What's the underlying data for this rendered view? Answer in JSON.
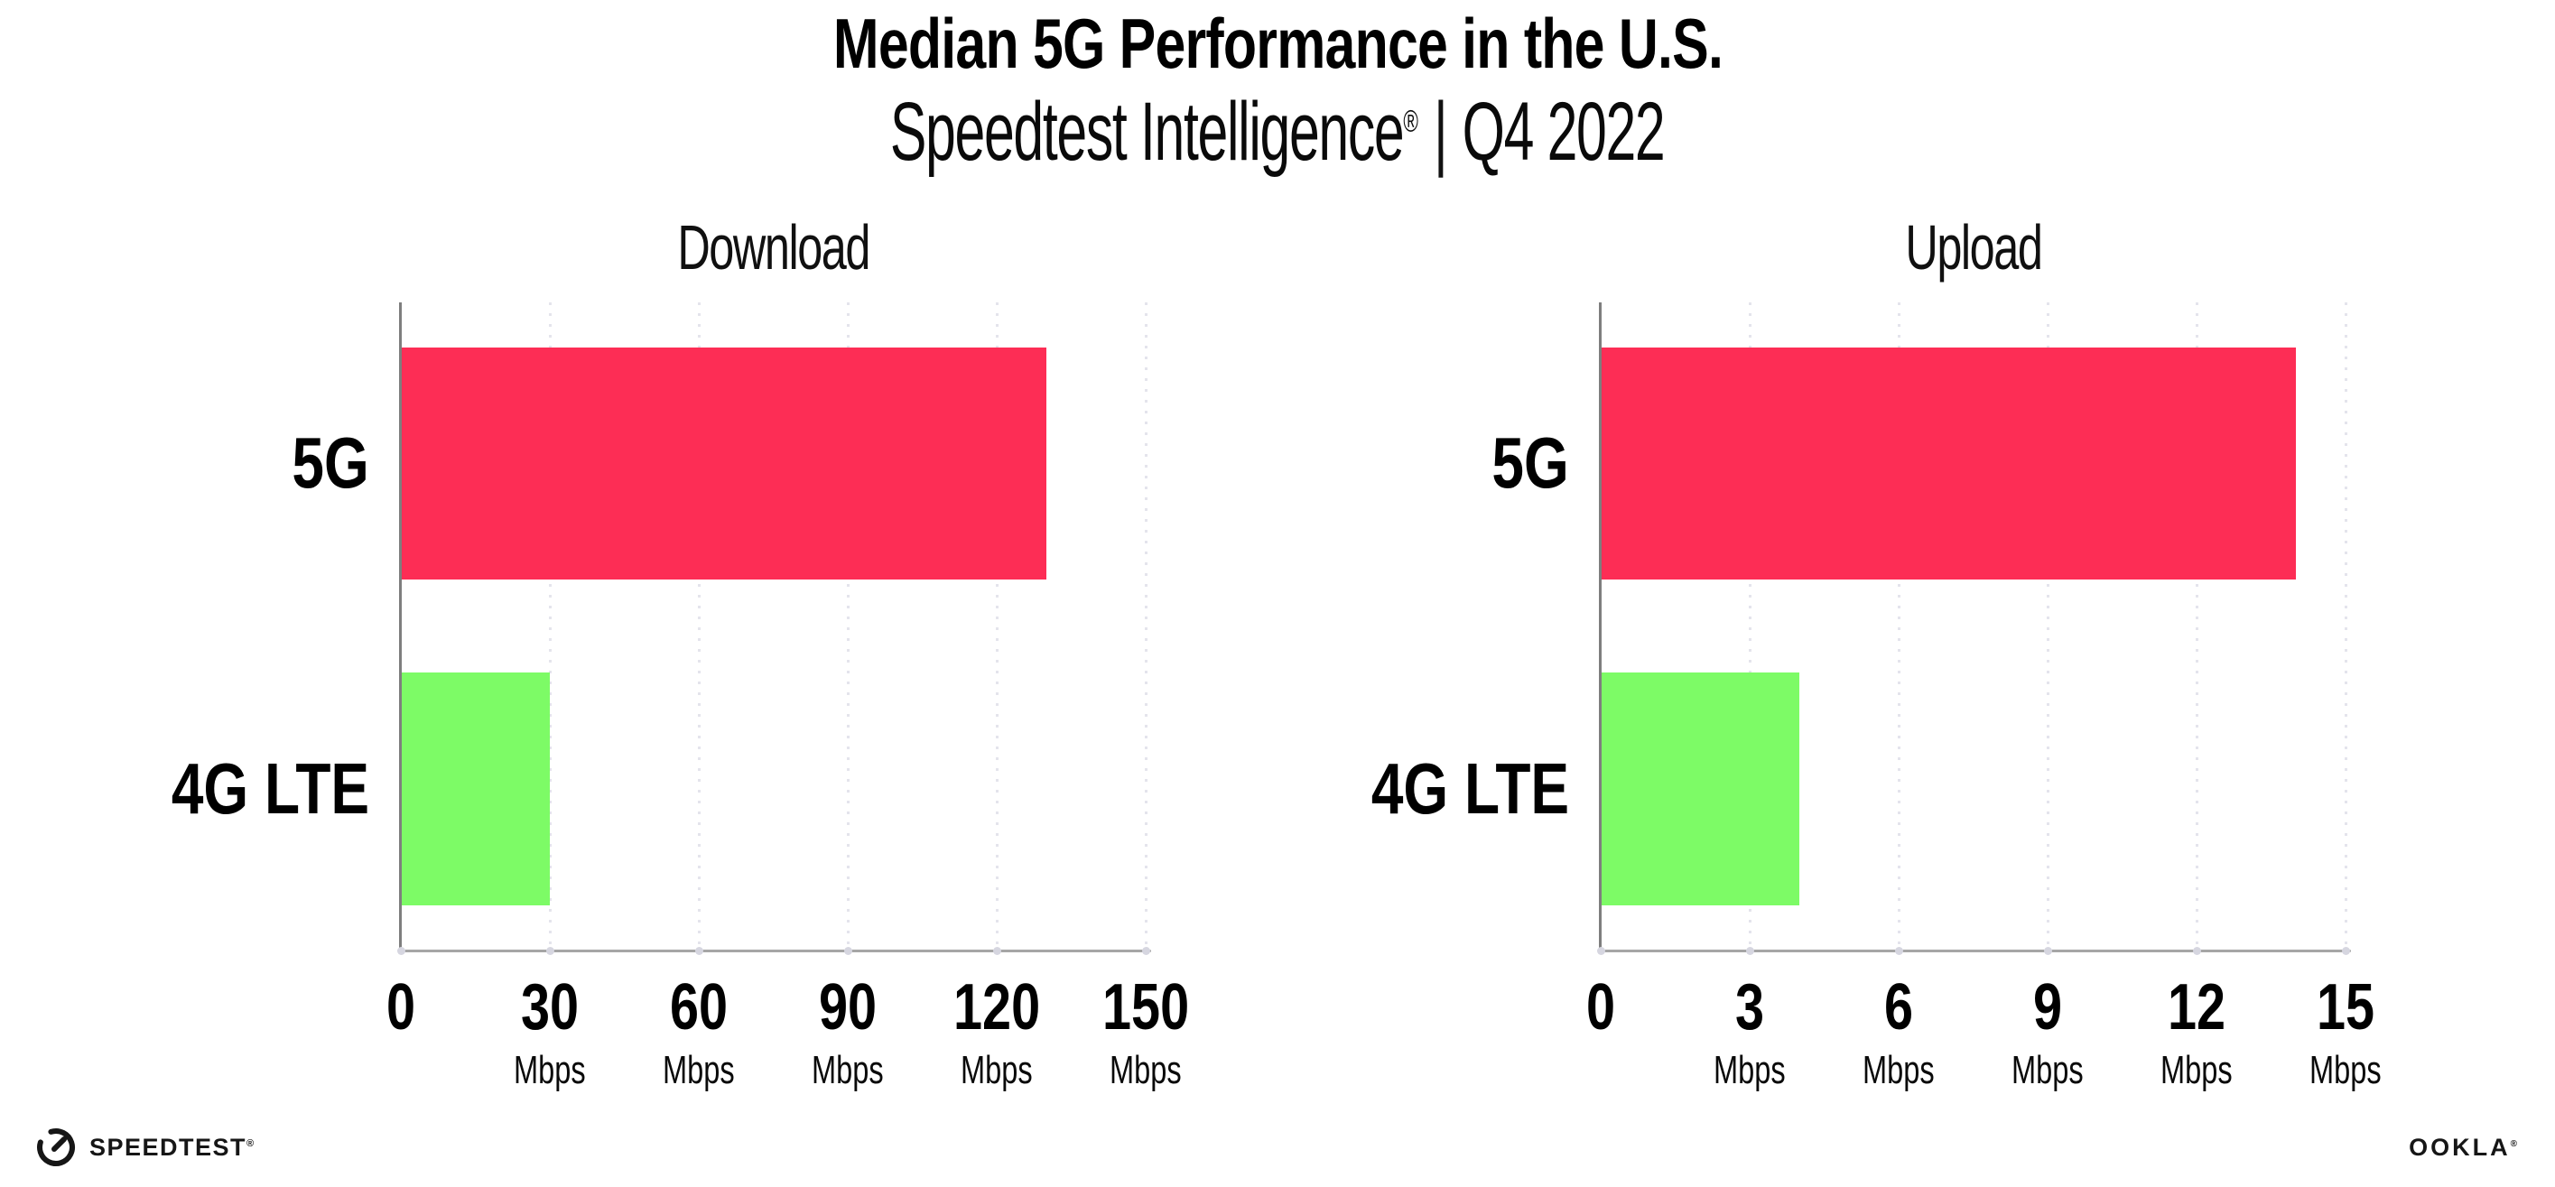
{
  "header": {
    "title": "Median 5G Performance in the U.S.",
    "subtitle": {
      "brand": "Speedtest Intelligence",
      "registered_mark": "®",
      "separator": "|",
      "period": "Q4 2022"
    }
  },
  "chart_data": [
    {
      "type": "bar",
      "orientation": "horizontal",
      "title": "Download",
      "categories": [
        "5G",
        "4G LTE"
      ],
      "values": [
        130,
        30
      ],
      "unit": "Mbps",
      "xlim": [
        0,
        150
      ],
      "xticks": [
        0,
        30,
        60,
        90,
        120,
        150
      ],
      "xtick_unit": "Mbps",
      "bar_colors": [
        "#FD2D55",
        "#7DFB66"
      ],
      "grid": "vertical dotted gridlines at each tick",
      "legend": "none"
    },
    {
      "type": "bar",
      "orientation": "horizontal",
      "title": "Upload",
      "categories": [
        "5G",
        "4G LTE"
      ],
      "values": [
        14,
        4
      ],
      "unit": "Mbps",
      "xlim": [
        0,
        15
      ],
      "xticks": [
        0,
        3,
        6,
        9,
        12,
        15
      ],
      "xtick_unit": "Mbps",
      "bar_colors": [
        "#FD2D55",
        "#7DFB66"
      ],
      "grid": "vertical dotted gridlines at each tick",
      "legend": "none"
    }
  ],
  "footer": {
    "speedtest_wordmark": "SPEEDTEST",
    "speedtest_mark": "®",
    "ookla_wordmark": "OOKLA",
    "ookla_mark": "®"
  },
  "colors": {
    "bar_5g": "#FD2D55",
    "bar_4g_lte": "#7DFB66",
    "axis_y_line": "#7e7e7e",
    "axis_x_line": "#a6a6a6",
    "gridline": "#e4e4ec",
    "tick_dot": "#d6d6e0",
    "text": "#000000",
    "background": "#ffffff"
  }
}
